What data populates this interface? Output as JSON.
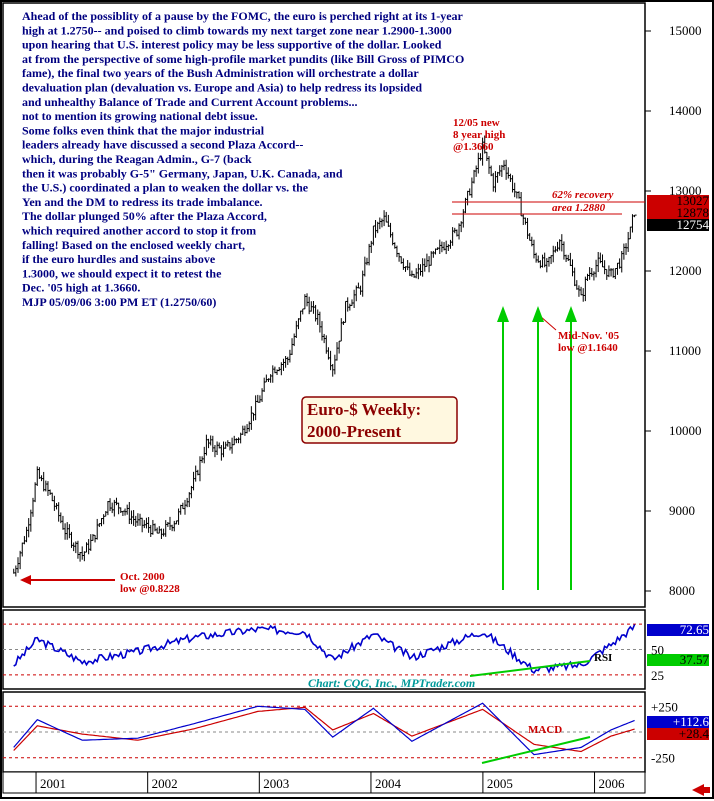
{
  "chart_data": {
    "type": "line",
    "title": "Euro-$ Weekly:",
    "subtitle": "2000-Present",
    "x_axis": {
      "tick_labels": [
        "2001",
        "2002",
        "2003",
        "2004",
        "2005",
        "2006"
      ]
    },
    "y_axis": {
      "tick_labels": [
        "8000",
        "9000",
        "10000",
        "11000",
        "12000",
        "13000",
        "14000",
        "15000"
      ],
      "ylim": [
        7800,
        15350
      ]
    },
    "commentary": [
      "Ahead of the possiblity of a pause by the FOMC, the euro is perched right at its 1-year",
      "high at 1.2750-- and poised to climb towards my next target zone near 1.2900-1.3000",
      "upon hearing that U.S. interest policy may be less supportive of the dollar. Looked",
      "at from the perspective of some high-profile market pundits (like Bill Gross of PIMCO",
      "fame), the final two years of the Bush Administration will orchestrate a dollar",
      "devaluation plan (devaluation vs. Europe and Asia) to help redress its lopsided",
      "and unhealthy Balance of Trade and Current Account problems...",
      "not to mention its growing national debt issue.",
      "Some folks even think that the major industrial",
      "leaders already have discussed a second Plaza Accord--",
      "which, during the Reagan Admin., G-7 (back",
      "then it was probably G-5\" Germany, Japan, U.K. Canada, and",
      "the U.S.) coordinated a plan to weaken the dollar vs. the",
      "Yen and the DM to redress its trade imbalance.",
      "The dollar plunged 50% after the Plaza Accord,",
      "which required another accord to stop it from",
      "falling!  Based on the enclosed weekly chart,",
      "if the euro hurdles and sustains above",
      "1.3000, we should expect it to retest the",
      "Dec. '05 high at 1.3660.",
      "MJP  05/09/06 3:00 PM ET  (1.2750/60)"
    ],
    "annotations": {
      "oct2000": [
        "Oct. 2000",
        "low @0.8228"
      ],
      "dec05": [
        "12/05 new",
        "8 year high",
        "@1.3660"
      ],
      "recovery": [
        "62% recovery",
        "area 1.2880"
      ],
      "nov05": [
        "Mid-Nov. '05",
        "low @1.1640"
      ],
      "rsi_label": "RSI",
      "macd_label": "MACD",
      "credit": "Chart: CQG, Inc., MPTrader.com"
    },
    "price_boxes": [
      "13027",
      "12878",
      "12754"
    ],
    "rsi": {
      "tick_labels": [
        "50",
        "25"
      ],
      "value_boxes": [
        "72.65",
        "37.57"
      ]
    },
    "macd": {
      "tick_labels": [
        "+250",
        "-250"
      ],
      "value_boxes": [
        "+112.6",
        "+28.4"
      ]
    },
    "price_series": {
      "name": "",
      "x": [
        "2000-10-20",
        "2000-12-01",
        "2001-01-05",
        "2001-02-16",
        "2001-04-06",
        "2001-06-01",
        "2001-07-06",
        "2001-08-24",
        "2001-10-05",
        "2001-11-30",
        "2002-01-04",
        "2002-02-08",
        "2002-04-05",
        "2002-05-31",
        "2002-07-12",
        "2002-09-06",
        "2002-11-01",
        "2002-12-27",
        "2003-02-07",
        "2003-04-04",
        "2003-05-30",
        "2003-07-11",
        "2003-08-29",
        "2003-10-10",
        "2003-11-28",
        "2004-01-09",
        "2004-02-13",
        "2004-04-02",
        "2004-05-14",
        "2004-07-02",
        "2004-08-20",
        "2004-10-08",
        "2004-11-26",
        "2004-12-31",
        "2005-02-04",
        "2005-03-11",
        "2005-04-29",
        "2005-06-17",
        "2005-07-29",
        "2005-09-09",
        "2005-10-14",
        "2005-11-18",
        "2005-12-09",
        "2006-01-13",
        "2006-02-24",
        "2006-03-31",
        "2006-04-28",
        "2006-05-12"
      ],
      "close": [
        8228,
        8750,
        9450,
        9200,
        8750,
        8450,
        8650,
        9100,
        9050,
        8850,
        8800,
        8700,
        8900,
        9350,
        9850,
        9750,
        9950,
        10350,
        10750,
        10900,
        11650,
        11400,
        10800,
        11550,
        11800,
        12500,
        12650,
        12200,
        11900,
        12100,
        12300,
        12500,
        13100,
        13550,
        13100,
        13350,
        12850,
        12200,
        12050,
        12400,
        12050,
        11650,
        11950,
        12100,
        11950,
        12150,
        12500,
        12754
      ]
    },
    "rsi_series": {
      "name": "RSI",
      "x": [
        "2000-10-20",
        "2001-01-05",
        "2001-06-01",
        "2001-11-30",
        "2002-05-31",
        "2002-12-27",
        "2003-05-30",
        "2003-08-29",
        "2004-01-09",
        "2004-05-14",
        "2004-12-31",
        "2005-06-17",
        "2005-11-18",
        "2006-02-24",
        "2006-05-12"
      ],
      "values": [
        35,
        60,
        38,
        48,
        62,
        70,
        68,
        40,
        65,
        42,
        68,
        30,
        35,
        55,
        72.65
      ]
    },
    "macd_series": [
      {
        "name": "MACD",
        "x": [
          "2000-10-20",
          "2001-01-05",
          "2001-06-01",
          "2001-11-30",
          "2002-05-31",
          "2002-12-27",
          "2003-05-30",
          "2003-08-29",
          "2004-01-09",
          "2004-05-14",
          "2004-12-31",
          "2005-06-17",
          "2005-11-18",
          "2006-02-24",
          "2006-05-12"
        ],
        "values": [
          -150,
          120,
          -80,
          -60,
          80,
          250,
          220,
          -50,
          230,
          -90,
          280,
          -220,
          -150,
          20,
          112.6
        ]
      },
      {
        "name": "Signal",
        "x": [
          "2000-10-20",
          "2001-01-05",
          "2001-06-01",
          "2001-11-30",
          "2002-05-31",
          "2002-12-27",
          "2003-05-30",
          "2003-08-29",
          "2004-01-09",
          "2004-05-14",
          "2004-12-31",
          "2005-06-17",
          "2005-11-18",
          "2006-02-24",
          "2006-05-12"
        ],
        "values": [
          -180,
          60,
          -20,
          -80,
          30,
          200,
          240,
          20,
          180,
          -40,
          220,
          -120,
          -190,
          -40,
          28.4
        ]
      }
    ],
    "colors": {
      "frame": "#000000",
      "bars": "#000000",
      "commentary": "#000080",
      "red": "#cc0000",
      "green": "#00cc00",
      "rsi_line": "#0000cc",
      "macd_line": "#0000cc",
      "signal_line": "#cc0000",
      "title_bg": "#fff8e0",
      "blue_box": "#0000cc",
      "green_box": "#00cc00",
      "red_box": "#cc0000",
      "credit": "#009999"
    }
  }
}
